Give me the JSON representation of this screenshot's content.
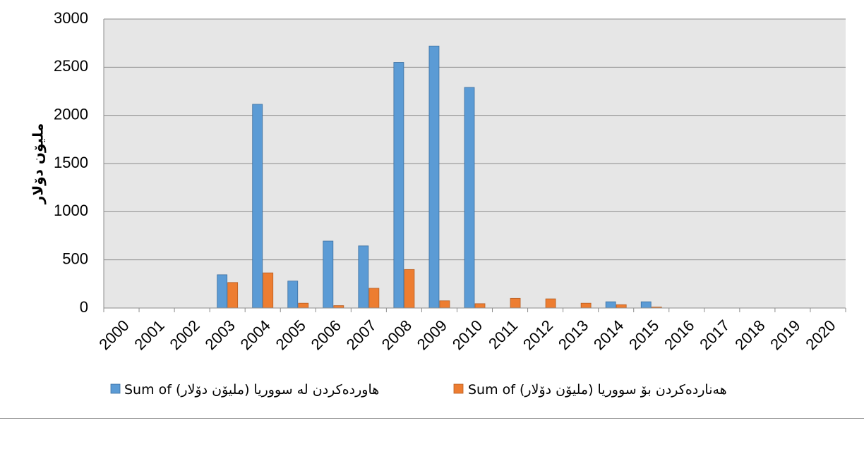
{
  "chart_data": {
    "type": "bar",
    "title": "",
    "xlabel": "",
    "ylabel": "مليۆن دۆلار",
    "ylim": [
      0,
      3000
    ],
    "yticks": [
      "0",
      "500",
      "1000",
      "1500",
      "2000",
      "2500",
      "3000"
    ],
    "grid": true,
    "legend_position": "bottom",
    "categories": [
      "2000",
      "2001",
      "2002",
      "2003",
      "2004",
      "2005",
      "2006",
      "2007",
      "2008",
      "2009",
      "2010",
      "2011",
      "2012",
      "2013",
      "2014",
      "2015",
      "2016",
      "2017",
      "2018",
      "2019",
      "2020"
    ],
    "series": [
      {
        "name": "Sum of هاوردەکردن لە سووریا (مليۆن دۆلار)",
        "color": "#5b9bd5",
        "values": [
          0,
          0,
          0,
          345,
          2115,
          280,
          695,
          645,
          2550,
          2720,
          2290,
          0,
          0,
          0,
          65,
          65,
          0,
          0,
          0,
          0,
          0
        ]
      },
      {
        "name": "Sum of هەناردەکردن بۆ سووریا (مليۆن دۆلار)",
        "color": "#ed7d31",
        "values": [
          0,
          0,
          0,
          265,
          365,
          50,
          25,
          205,
          400,
          75,
          45,
          100,
          95,
          50,
          35,
          10,
          0,
          0,
          0,
          0,
          0
        ]
      }
    ],
    "plot_background": "#e6e6e6",
    "gridline_color": "#8c8c8c"
  }
}
